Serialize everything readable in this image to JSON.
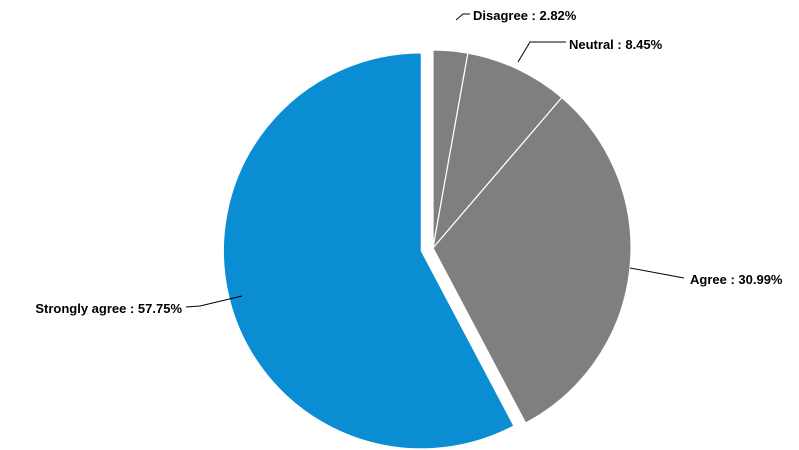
{
  "chart_data": {
    "type": "pie",
    "title": "",
    "categories": [
      "Disagree",
      "Neutral",
      "Agree",
      "Strongly agree"
    ],
    "values": [
      2.82,
      8.45,
      30.99,
      57.75
    ],
    "unit": "%",
    "labels": [
      "Disagree : 2.82%",
      "Neutral : 8.45%",
      "Agree : 30.99%",
      "Strongly agree : 57.75%"
    ],
    "colors": [
      "#7f7f7f",
      "#7f7f7f",
      "#7f7f7f",
      "#0a8dd3"
    ],
    "exploded": [
      false,
      false,
      false,
      true
    ],
    "start_angle": "top",
    "direction": "clockwise",
    "legend": "none",
    "label_placement": "outside with leader lines"
  }
}
